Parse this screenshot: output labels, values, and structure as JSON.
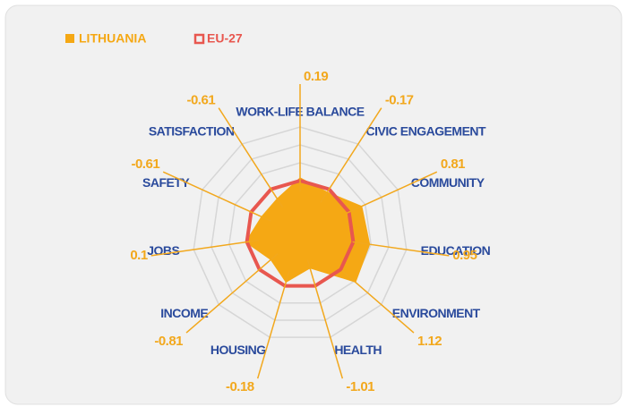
{
  "chart_data": {
    "type": "radar",
    "categories": [
      "WORK-LIFE BALANCE",
      "CIVIC ENGAGEMENT",
      "COMMUNITY",
      "EDUCATION",
      "ENVIRONMENT",
      "HEALTH",
      "HOUSING",
      "INCOME",
      "JOBS",
      "SAFETY",
      "SATISFACTION"
    ],
    "series": [
      {
        "name": "LITHUANIA",
        "color": "#f5a814",
        "values": [
          0.19,
          -0.17,
          0.81,
          0.95,
          1.12,
          -1.01,
          -0.18,
          -0.81,
          0.1,
          -0.61,
          -0.61
        ]
      },
      {
        "name": "EU-27",
        "color": "#e8574f",
        "values": [
          0,
          0,
          0,
          0,
          0,
          0,
          0,
          0,
          0,
          0,
          0
        ]
      }
    ],
    "ylim": [
      -3,
      3
    ],
    "yticks": [
      -2,
      -1,
      0,
      1,
      2,
      3
    ],
    "grid": true,
    "legend": "top-left"
  }
}
